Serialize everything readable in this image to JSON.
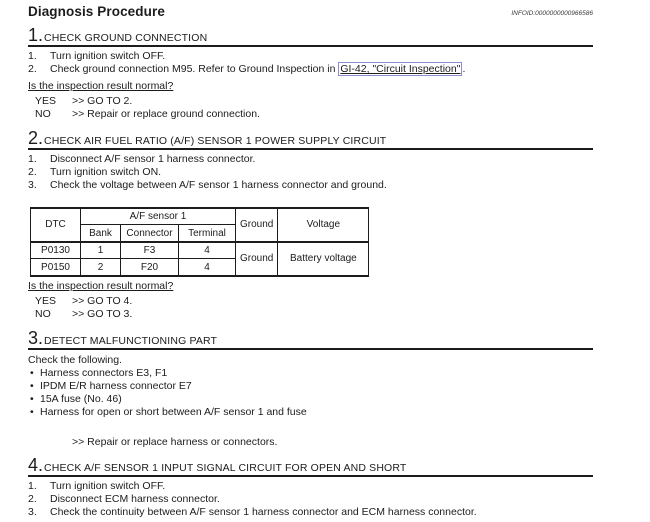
{
  "page": {
    "title": "Diagnosis Procedure",
    "infoid": "INFOID:0000000000966586"
  },
  "sections": [
    {
      "number": "1.",
      "title": "CHECK GROUND CONNECTION",
      "steps": [
        "Turn ignition switch OFF."
      ],
      "step_with_link": {
        "pre": "Check ground connection M95. Refer to Ground Inspection in ",
        "link": "GI-42, \"Circuit Inspection\"",
        "post": "."
      },
      "question": "Is the inspection result normal?",
      "results": [
        {
          "label": "YES",
          "action": ">> GO TO 2."
        },
        {
          "label": "NO",
          "action": ">> Repair or replace ground connection."
        }
      ]
    },
    {
      "number": "2.",
      "title": "CHECK AIR FUEL RATIO (A/F) SENSOR 1 POWER SUPPLY CIRCUIT",
      "steps": [
        "Disconnect A/F sensor 1 harness connector.",
        "Turn ignition switch ON.",
        "Check the voltage between A/F sensor 1 harness connector and ground."
      ],
      "question": "Is the inspection result normal?",
      "results": [
        {
          "label": "YES",
          "action": ">> GO TO 4."
        },
        {
          "label": "NO",
          "action": ">> GO TO 3."
        }
      ]
    },
    {
      "number": "3.",
      "title": "DETECT MALFUNCTIONING PART",
      "intro": "Check the following.",
      "bullets": [
        "Harness connectors E3, F1",
        "IPDM E/R harness connector E7",
        "15A fuse (No. 46)",
        "Harness for open or short between A/F sensor 1 and fuse"
      ],
      "action": ">> Repair or replace harness or connectors."
    },
    {
      "number": "4.",
      "title": "CHECK A/F SENSOR 1 INPUT SIGNAL CIRCUIT FOR OPEN AND SHORT",
      "steps": [
        "Turn ignition switch OFF.",
        "Disconnect ECM harness connector.",
        "Check the continuity between A/F sensor 1 harness connector and ECM harness connector."
      ]
    }
  ],
  "table": {
    "headers": {
      "dtc": "DTC",
      "group": "A/F sensor 1",
      "bank": "Bank",
      "connector": "Connector",
      "terminal": "Terminal",
      "ground": "Ground",
      "voltage": "Voltage"
    },
    "rows": [
      {
        "dtc": "P0130",
        "bank": "1",
        "connector": "F3",
        "terminal": "4"
      },
      {
        "dtc": "P0150",
        "bank": "2",
        "connector": "F20",
        "terminal": "4"
      }
    ],
    "merged": {
      "ground": "Ground",
      "voltage": "Battery voltage"
    }
  },
  "colors": {
    "link_box": "#8c8ccf",
    "text": "#1c1c1c"
  }
}
